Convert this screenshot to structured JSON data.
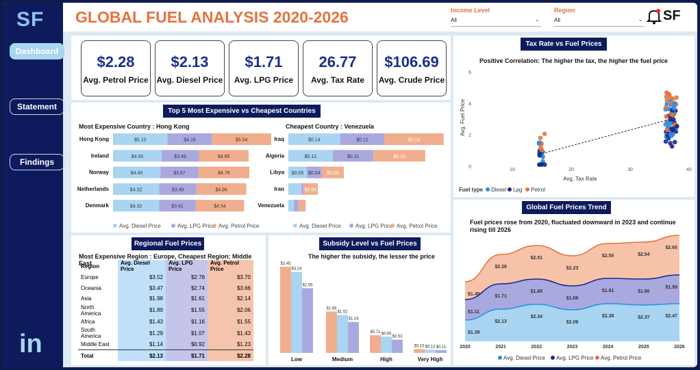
{
  "sidebar": {
    "logo": "SF",
    "nav": [
      "Dashboard",
      "Statement",
      "Findings"
    ],
    "social": "in"
  },
  "header": {
    "title": "GLOBAL FUEL ANALYSIS 2020-2026",
    "slicers": [
      {
        "label": "Income Level",
        "value": "All"
      },
      {
        "label": "Region",
        "value": "All"
      }
    ],
    "brand": "SF"
  },
  "kpis": [
    {
      "value": "$2.28",
      "label": "Avg. Petrol Price"
    },
    {
      "value": "$2.13",
      "label": "Avg. Diesel Price"
    },
    {
      "value": "$1.71",
      "label": "Avg. LPG Price"
    },
    {
      "value": "26.77",
      "label": "Avg. Tax Rate"
    },
    {
      "value": "$106.69",
      "label": "Avg. Crude Price"
    }
  ],
  "colors": {
    "diesel": "#a9d4f2",
    "lpg": "#a9a9e0",
    "petrol": "#f0ae8e",
    "navy": "#0d1b5c",
    "orange": "#e4733f"
  },
  "chart_data": [
    {
      "type": "bar",
      "title": "Top 5 Most Expensive vs Cheapest Countries",
      "subtitle_left": "Most Expensive Country : Hong Kong",
      "subtitle_right": "Cheapest Country : Venezuela",
      "stacked": true,
      "legend": [
        "Avg. Diesel Price",
        "Avg. LPG Price",
        "Avg. Petrol Price"
      ],
      "expensive": {
        "categories": [
          "Hong Kong",
          "Ireland",
          "Norway",
          "Netherlands",
          "Denmark"
        ],
        "series": [
          {
            "name": "Avg. Diesel Price",
            "values": [
              5.1,
              4.55,
              4.43,
              4.32,
              4.32
            ]
          },
          {
            "name": "Avg. LPG Price",
            "values": [
              4.16,
              3.49,
              3.57,
              3.49,
              3.41
            ]
          },
          {
            "name": "Avg. Petrol Price",
            "values": [
              5.54,
              4.65,
              4.76,
              4.66,
              4.54
            ]
          }
        ],
        "labels": [
          [
            "$5.10",
            "$4.16",
            "$5.54"
          ],
          [
            "$4.55",
            "$3.49",
            "$4.65"
          ],
          [
            "$4.43",
            "$3.57",
            "$4.76"
          ],
          [
            "$4.32",
            "$3.49",
            "$4.66"
          ],
          [
            "$4.32",
            "$3.41",
            "$4.54"
          ]
        ]
      },
      "cheapest": {
        "categories": [
          "Iraq",
          "Algeria",
          "Libya",
          "Iran",
          "Venezuela"
        ],
        "series": [
          {
            "name": "Avg. Diesel Price",
            "values": [
              0.14,
              0.12,
              0.05,
              0.035,
              0.015
            ]
          },
          {
            "name": "Avg. LPG Price",
            "values": [
              0.12,
              0.11,
              0.04,
              0.005,
              0.012
            ]
          },
          {
            "name": "Avg. Petrol Price",
            "values": [
              0.16,
              0.14,
              0.06,
              0.04,
              0.02
            ]
          }
        ],
        "labels": [
          [
            "$0.14",
            "$0.12",
            "$0.16"
          ],
          [
            "$0.12",
            "$0.11",
            "$0.14"
          ],
          [
            "$0.05",
            "$0.04",
            "$0.06"
          ],
          [
            "",
            "",
            "$0.04"
          ],
          [
            "",
            "",
            ""
          ]
        ]
      }
    },
    {
      "type": "table",
      "title": "Regional Fuel Prices",
      "subtitle": "Most Expensive Region : Europe,  Cheapest Region: Middle East",
      "columns": [
        "Region",
        "Avg. Diesel Price",
        "Avg. LPG Price",
        "Avg. Petrol Price"
      ],
      "rows": [
        [
          "Europe",
          "$3.52",
          "$2.78",
          "$3.70"
        ],
        [
          "Oceania",
          "$3.47",
          "$2.74",
          "$3.66"
        ],
        [
          "Asia",
          "$1.98",
          "$1.61",
          "$2.14"
        ],
        [
          "North America",
          "$1.89",
          "$1.55",
          "$2.06"
        ],
        [
          "Africa",
          "$1.43",
          "$1.16",
          "$1.55"
        ],
        [
          "South America",
          "$1.29",
          "$1.07",
          "$1.43"
        ],
        [
          "Middle East",
          "$1.14",
          "$0.92",
          "$1.23"
        ]
      ],
      "total": [
        "Total",
        "$2.13",
        "$1.71",
        "$2.28"
      ]
    },
    {
      "type": "bar",
      "title": "Subsidy Level vs Fuel Prices",
      "subtitle": "The higher the subsidy, the lesser the price",
      "categories": [
        "Low",
        "Medium",
        "High",
        "Very High"
      ],
      "series": [
        {
          "name": "Avg. Petrol Price",
          "values": [
            3.45,
            1.66,
            0.71,
            0.15
          ]
        },
        {
          "name": "Avg. Diesel Price",
          "values": [
            3.24,
            1.52,
            0.65,
            0.13
          ]
        },
        {
          "name": "Avg. LPG Price",
          "values": [
            2.59,
            1.24,
            0.53,
            0.11
          ]
        }
      ],
      "labels": [
        [
          "$3.45",
          "$3.24",
          "$2.59"
        ],
        [
          "$1.66",
          "$1.52",
          "$1.24"
        ],
        [
          "$0.71",
          "$0.65",
          "$0.53"
        ],
        [
          "$0.15",
          "$0.13",
          "$0.11"
        ]
      ]
    },
    {
      "type": "scatter",
      "title": "Tax Rate vs Fuel Prices",
      "subtitle": "Positive Correlation: The higher the tax, the higher the fuel price",
      "xlabel": "Avg. Tax Rate",
      "ylabel": "Avg. Fuel Price",
      "xlim": [
        5,
        40
      ],
      "ylim": [
        0,
        6
      ],
      "xticks": [
        10,
        20,
        30,
        40
      ],
      "yticks": [
        0,
        2,
        4,
        6
      ],
      "legend_title": "Fuel type",
      "legend": [
        "Diesel",
        "Lpg",
        "Petrol"
      ],
      "trendline": [
        [
          15,
          0.8
        ],
        [
          37,
          3.0
        ]
      ]
    },
    {
      "type": "area",
      "title": "Global Fuel Prices Trend",
      "subtitle": "Fuel prices rose from 2020, fluctuated downward in 2023 and continue rising till 2026",
      "x": [
        "2020",
        "2021",
        "2022",
        "2023",
        "2024",
        "2025",
        "2026"
      ],
      "series": [
        {
          "name": "Avg. Diesel Price",
          "values": [
            1.39,
            2.13,
            2.34,
            2.09,
            2.38,
            2.37,
            2.47
          ]
        },
        {
          "name": "Avg. LPG Price",
          "values": [
            1.11,
            1.71,
            1.88,
            1.68,
            1.91,
            1.9,
            1.99
          ]
        },
        {
          "name": "Avg. Petrol Price",
          "values": [
            1.48,
            2.28,
            2.51,
            2.23,
            2.55,
            2.54,
            2.65
          ]
        }
      ],
      "labels": {
        "petrol": [
          "$1.48",
          "$2.28",
          "$2.51",
          "$2.23",
          "$2.55",
          "$2.54",
          "$2.65"
        ],
        "lpg": [
          "$1.11",
          "$1.71",
          "$1.88",
          "$1.68",
          "$1.91",
          "$1.90",
          "$1.99"
        ],
        "diesel": [
          "$1.39",
          "$2.13",
          "$2.34",
          "$2.09",
          "$2.38",
          "$2.37",
          "$2.47"
        ]
      },
      "legend": [
        "Avg. Diesel Price",
        "Avg. LPG Price",
        "Avg. Petrol Price"
      ]
    }
  ]
}
